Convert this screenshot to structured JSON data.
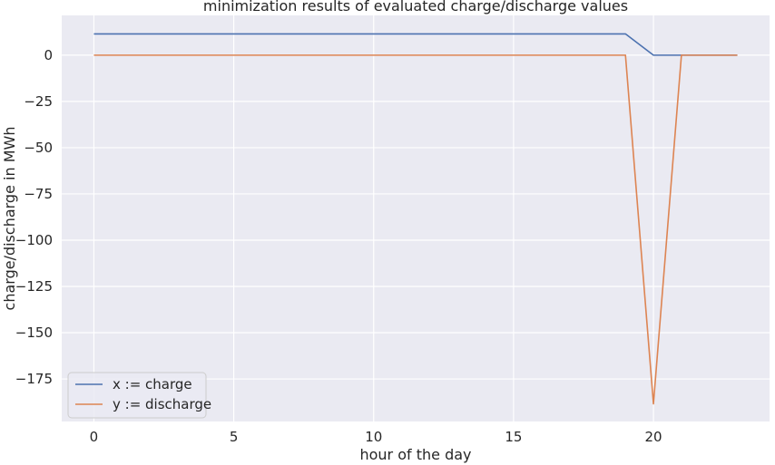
{
  "chart_data": {
    "type": "line",
    "title": "minimization results of evaluated charge/discharge values",
    "xlabel": "hour of the day",
    "ylabel": "charge/discharge in MWh",
    "xlim": [
      -1.15,
      24.15
    ],
    "ylim": [
      -198,
      21.5
    ],
    "xticks": [
      0,
      5,
      10,
      15,
      20
    ],
    "xtick_labels": [
      "0",
      "5",
      "10",
      "15",
      "20"
    ],
    "yticks": [
      0,
      -25,
      -50,
      -75,
      -100,
      -125,
      -150,
      -175
    ],
    "ytick_labels": [
      "0",
      "−25",
      "−50",
      "−75",
      "−100",
      "−125",
      "−150",
      "−175"
    ],
    "grid": true,
    "legend_position": "lower-left",
    "x": [
      0,
      1,
      2,
      3,
      4,
      5,
      6,
      7,
      8,
      9,
      10,
      11,
      12,
      13,
      14,
      15,
      16,
      17,
      18,
      19,
      20,
      21,
      22,
      23
    ],
    "series": [
      {
        "name": "x := charge",
        "color": "#4c72b0",
        "values": [
          11.5,
          11.5,
          11.5,
          11.5,
          11.5,
          11.5,
          11.5,
          11.5,
          11.5,
          11.5,
          11.5,
          11.5,
          11.5,
          11.5,
          11.5,
          11.5,
          11.5,
          11.5,
          11.5,
          11.5,
          0,
          0,
          0,
          0
        ]
      },
      {
        "name": "y := discharge",
        "color": "#dd8452",
        "values": [
          0,
          0,
          0,
          0,
          0,
          0,
          0,
          0,
          0,
          0,
          0,
          0,
          0,
          0,
          0,
          0,
          0,
          0,
          0,
          0,
          -188.5,
          0,
          0,
          0
        ]
      }
    ]
  },
  "colors": {
    "plot_background": "#eaeaf2",
    "grid": "#ffffff",
    "text": "#262626"
  }
}
